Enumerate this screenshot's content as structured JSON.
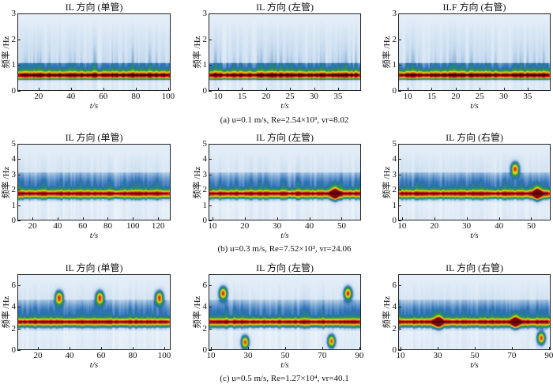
{
  "ylabel": "频率 /Hz",
  "xlabel": "t/s",
  "captions": [
    "(a) u=0.1 m/s, Re=2.54×10³, vr=8.02",
    "(b) u=0.3 m/s, Re=7.52×10³, vr=24.06",
    "(c) u=0.5 m/s, Re=1.27×10⁴, vr=40.1"
  ],
  "colormap": [
    "#ffffff",
    "#c6dbef",
    "#2b6fb5",
    "#2ca02c",
    "#f2e21c",
    "#e8301c",
    "#7a0010"
  ],
  "panels": [
    {
      "title": "IL 方向 (单管)",
      "xlim": [
        7,
        101.5
      ],
      "xticks": [
        20,
        40,
        60,
        80,
        100
      ],
      "ylim": [
        0,
        3
      ],
      "yticks": [
        0,
        1,
        2,
        3
      ],
      "ridge_hz": 0.6,
      "hotspots": []
    },
    {
      "title": "IL 方向 (左管)",
      "xlim": [
        8,
        39.8
      ],
      "xticks": [
        10,
        15,
        20,
        25,
        30,
        35
      ],
      "ylim": [
        0,
        3
      ],
      "yticks": [
        0,
        1,
        2,
        3
      ],
      "ridge_hz": 0.6,
      "hotspots": []
    },
    {
      "title": "ILF 方向 (右管)",
      "xlim": [
        8,
        39.8
      ],
      "xticks": [
        10,
        15,
        20,
        25,
        30,
        35
      ],
      "ylim": [
        0,
        3
      ],
      "yticks": [
        0,
        1,
        2,
        3
      ],
      "ridge_hz": 0.6,
      "hotspots": []
    },
    {
      "title": "IL 方向 (单管)",
      "xlim": [
        8,
        130
      ],
      "xticks": [
        20,
        40,
        60,
        80,
        100,
        120
      ],
      "ylim": [
        0,
        5
      ],
      "yticks": [
        0,
        1,
        2,
        3,
        4,
        5
      ],
      "ridge_hz": 1.75,
      "hotspots": []
    },
    {
      "title": "IL 方向 (左管)",
      "xlim": [
        8.8,
        56
      ],
      "xticks": [
        10,
        20,
        30,
        40,
        50
      ],
      "ylim": [
        0,
        5
      ],
      "yticks": [
        0,
        1,
        2,
        3,
        4,
        5
      ],
      "ridge_hz": 1.75,
      "hotspots": [
        [
          48,
          1.75
        ]
      ]
    },
    {
      "title": "IL 方向 (右管)",
      "xlim": [
        8.8,
        56
      ],
      "xticks": [
        10,
        20,
        30,
        40,
        50
      ],
      "ylim": [
        0,
        5
      ],
      "yticks": [
        0,
        1,
        2,
        3,
        4,
        5
      ],
      "ridge_hz": 1.75,
      "hotspots": [
        [
          45,
          3.4
        ],
        [
          52,
          1.75
        ]
      ]
    },
    {
      "title": "IL 方向 (单管)",
      "xlim": [
        7,
        104
      ],
      "xticks": [
        20,
        40,
        60,
        80,
        100
      ],
      "ylim": [
        0,
        7
      ],
      "yticks": [
        0,
        2,
        4,
        6
      ],
      "ridge_hz": 2.6,
      "hotspots": [
        [
          33,
          4.9
        ],
        [
          59,
          4.9
        ],
        [
          97,
          4.9
        ]
      ]
    },
    {
      "title": "IL 方向 (左管)",
      "xlim": [
        8.7,
        90.9
      ],
      "xticks": [
        10,
        30,
        50,
        70,
        90
      ],
      "ylim": [
        0,
        7
      ],
      "yticks": [
        0,
        2,
        4,
        6
      ],
      "ridge_hz": 2.6,
      "hotspots": [
        [
          16,
          5.3
        ],
        [
          28,
          0.7
        ],
        [
          75,
          0.8
        ],
        [
          84,
          5.3
        ]
      ]
    },
    {
      "title": "IL 方向 (右管)",
      "xlim": [
        8.7,
        90.9
      ],
      "xticks": [
        10,
        30,
        50,
        70,
        90
      ],
      "ylim": [
        0,
        7
      ],
      "yticks": [
        0,
        2,
        4,
        6
      ],
      "ridge_hz": 2.6,
      "hotspots": [
        [
          30,
          2.6
        ],
        [
          72,
          2.6
        ],
        [
          86,
          1.1
        ]
      ]
    }
  ]
}
